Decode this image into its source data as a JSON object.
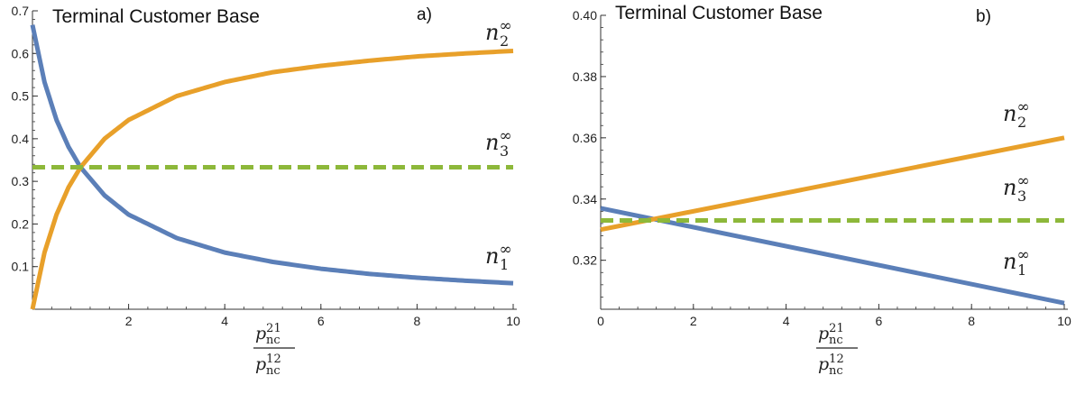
{
  "colors": {
    "n1": "#5b7fb8",
    "n2": "#e8a02a",
    "n3": "#8db83a",
    "axis": "#333333"
  },
  "xlabel": {
    "numerator_base": "p",
    "numerator_sub": "nc",
    "numerator_sup": "21",
    "denominator_base": "p",
    "denominator_sub": "nc",
    "denominator_sup": "12"
  },
  "chart_data": [
    {
      "type": "line",
      "title": "Terminal Customer Base",
      "panel_label": "a)",
      "xlim": [
        0,
        10
      ],
      "ylim": [
        0,
        0.7
      ],
      "x_ticks": [
        2,
        4,
        6,
        8,
        10
      ],
      "y_ticks": [
        0.1,
        0.2,
        0.3,
        0.4,
        0.5,
        0.6,
        0.7
      ],
      "grid": false,
      "series": [
        {
          "name": "n_1^∞",
          "label_base": "n",
          "label_sub": "1",
          "label_sup": "∞",
          "color_key": "n1",
          "dash": false,
          "x": [
            0,
            0.25,
            0.5,
            0.75,
            1,
            1.5,
            2,
            3,
            4,
            5,
            6,
            7,
            8,
            9,
            10
          ],
          "y": [
            0.667,
            0.533,
            0.444,
            0.381,
            0.333,
            0.267,
            0.222,
            0.167,
            0.133,
            0.111,
            0.095,
            0.083,
            0.074,
            0.067,
            0.061
          ]
        },
        {
          "name": "n_2^∞",
          "label_base": "n",
          "label_sub": "2",
          "label_sup": "∞",
          "color_key": "n2",
          "dash": false,
          "x": [
            0,
            0.25,
            0.5,
            0.75,
            1,
            1.5,
            2,
            3,
            4,
            5,
            6,
            7,
            8,
            9,
            10
          ],
          "y": [
            0.0,
            0.133,
            0.222,
            0.286,
            0.333,
            0.4,
            0.444,
            0.5,
            0.533,
            0.556,
            0.571,
            0.583,
            0.593,
            0.6,
            0.606
          ]
        },
        {
          "name": "n_3^∞",
          "label_base": "n",
          "label_sub": "3",
          "label_sup": "∞",
          "color_key": "n3",
          "dash": true,
          "x": [
            0,
            10
          ],
          "y": [
            0.333,
            0.333
          ]
        }
      ]
    },
    {
      "type": "line",
      "title": "Terminal Customer Base",
      "panel_label": "b)",
      "xlim": [
        0,
        10
      ],
      "ylim": [
        0.304,
        0.4
      ],
      "x_ticks": [
        0,
        2,
        4,
        6,
        8,
        10
      ],
      "y_ticks": [
        0.32,
        0.34,
        0.36,
        0.38,
        0.4
      ],
      "y_tick_labels": [
        "0.32",
        "0.34",
        "0.36",
        "0.38",
        "0.40"
      ],
      "grid": false,
      "series": [
        {
          "name": "n_1^∞",
          "label_base": "n",
          "label_sub": "1",
          "label_sup": "∞",
          "color_key": "n1",
          "dash": false,
          "x": [
            0,
            10
          ],
          "y": [
            0.337,
            0.306
          ]
        },
        {
          "name": "n_2^∞",
          "label_base": "n",
          "label_sub": "2",
          "label_sup": "∞",
          "color_key": "n2",
          "dash": false,
          "x": [
            0,
            10
          ],
          "y": [
            0.33,
            0.36
          ]
        },
        {
          "name": "n_3^∞",
          "label_base": "n",
          "label_sub": "3",
          "label_sup": "∞",
          "color_key": "n3",
          "dash": true,
          "x": [
            0,
            10
          ],
          "y": [
            0.333,
            0.333
          ]
        }
      ]
    }
  ]
}
